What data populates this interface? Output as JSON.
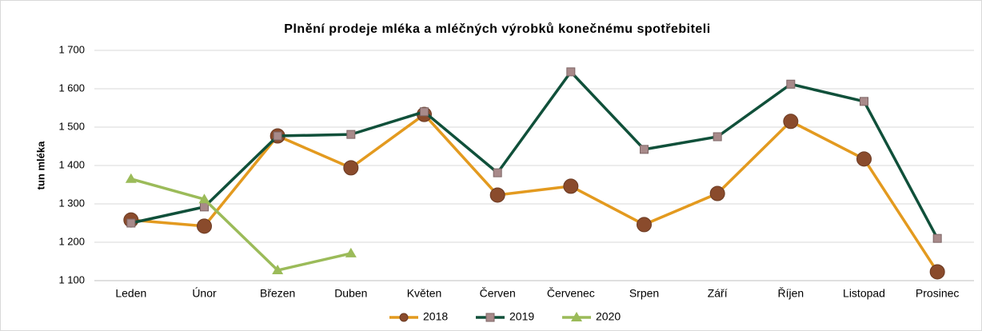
{
  "chart_data": {
    "type": "line",
    "title": "Plnění prodeje mléka a mléčných výrobků konečnému spotřebiteli",
    "y_label": "tun mléka",
    "categories": [
      "Leden",
      "Únor",
      "Březen",
      "Duben",
      "Květen",
      "Červen",
      "Červenec",
      "Srpen",
      "Září",
      "Říjen",
      "Listopad",
      "Prosinec"
    ],
    "series": [
      {
        "name": "2018",
        "color": "#e39a1f",
        "marker": "circle",
        "marker_color": "#8a4b2c",
        "values": [
          1258,
          1242,
          1477,
          1394,
          1533,
          1323,
          1346,
          1246,
          1327,
          1515,
          1417,
          1123
        ]
      },
      {
        "name": "2019",
        "color": "#10503a",
        "marker": "square",
        "marker_color": "#a88a8a",
        "values": [
          1250,
          1292,
          1477,
          1481,
          1540,
          1381,
          1644,
          1442,
          1475,
          1612,
          1567,
          1210
        ]
      },
      {
        "name": "2020",
        "color": "#9bbb59",
        "marker": "triangle",
        "marker_color": "#9bbb59",
        "values": [
          1365,
          1312,
          1127,
          1171,
          null,
          null,
          null,
          null,
          null,
          null,
          null,
          null
        ]
      }
    ],
    "ylim": [
      1100,
      1700
    ],
    "yticks": [
      {
        "value": 1100,
        "label": "1 100"
      },
      {
        "value": 1200,
        "label": "1 200"
      },
      {
        "value": 1300,
        "label": "1 300"
      },
      {
        "value": 1400,
        "label": "1 400"
      },
      {
        "value": 1500,
        "label": "1 500"
      },
      {
        "value": 1600,
        "label": "1 600"
      },
      {
        "value": 1700,
        "label": "1 700"
      }
    ],
    "grid": true,
    "legend": "bottom"
  }
}
